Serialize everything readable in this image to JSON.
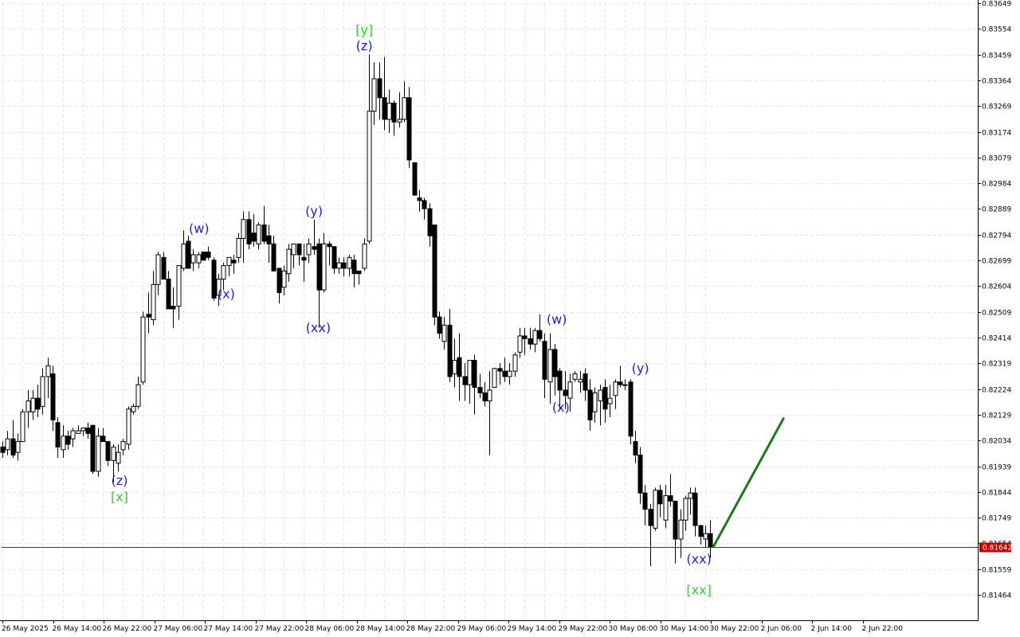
{
  "chart_data": {
    "type": "candlestick",
    "symbol_timeframe": "H2",
    "colors": {
      "background": "#ffffff",
      "grid": "#e6e6e6",
      "bull_body": "#ffffff",
      "bear_body": "#000000",
      "candle_outline": "#000000",
      "current_price_line": "#c80000",
      "forecast_line": "#1a7a1a",
      "wave_minor": "#2020d0",
      "wave_major": "#33cc33"
    },
    "y_axis": {
      "min": 0.8137,
      "max": 0.83649,
      "ticks": [
        "0.83649",
        "0.83554",
        "0.83459",
        "0.83364",
        "0.83269",
        "0.83174",
        "0.83079",
        "0.82984",
        "0.82889",
        "0.82794",
        "0.82699",
        "0.82604",
        "0.82509",
        "0.82414",
        "0.82319",
        "0.82224",
        "0.82129",
        "0.82034",
        "0.81939",
        "0.81844",
        "0.81749",
        "0.81654",
        "0.81559",
        "0.81464"
      ]
    },
    "x_axis": {
      "labels": [
        "26 May 2025",
        "26 May 14:00",
        "26 May 22:00",
        "27 May 06:00",
        "27 May 14:00",
        "27 May 22:00",
        "28 May 06:00",
        "28 May 14:00",
        "28 May 22:00",
        "29 May 06:00",
        "29 May 14:00",
        "29 May 22:00",
        "30 May 06:00",
        "30 May 14:00",
        "30 May 22:00",
        "2 Jun 06:00",
        "2 Jun 14:00",
        "2 Jun 22:00"
      ],
      "label_bar_index": [
        0,
        8,
        16,
        24,
        32,
        40,
        48,
        56,
        64,
        72,
        80,
        88,
        96,
        104,
        112,
        120,
        128,
        136
      ]
    },
    "current_price": "0.81642",
    "candles": [
      [
        0.8201,
        0.8203,
        0.8197,
        0.8199
      ],
      [
        0.82,
        0.8207,
        0.8198,
        0.8204
      ],
      [
        0.8204,
        0.8211,
        0.8197,
        0.8198
      ],
      [
        0.8199,
        0.8206,
        0.8196,
        0.8203
      ],
      [
        0.8203,
        0.8215,
        0.8203,
        0.8214
      ],
      [
        0.8214,
        0.8222,
        0.8208,
        0.8218
      ],
      [
        0.8214,
        0.8222,
        0.8211,
        0.8219
      ],
      [
        0.8219,
        0.8224,
        0.8212,
        0.8215
      ],
      [
        0.8216,
        0.823,
        0.8213,
        0.8227
      ],
      [
        0.8227,
        0.8234,
        0.8219,
        0.8231
      ],
      [
        0.8228,
        0.8231,
        0.8207,
        0.8211
      ],
      [
        0.821,
        0.8212,
        0.8197,
        0.8201
      ],
      [
        0.82,
        0.8209,
        0.8197,
        0.8205
      ],
      [
        0.8205,
        0.8207,
        0.82,
        0.8202
      ],
      [
        0.8204,
        0.8208,
        0.8201,
        0.8207
      ],
      [
        0.8206,
        0.8209,
        0.8206,
        0.8207
      ],
      [
        0.8207,
        0.8208,
        0.8205,
        0.8208
      ],
      [
        0.8208,
        0.821,
        0.8204,
        0.8206
      ],
      [
        0.8209,
        0.8209,
        0.8191,
        0.8192
      ],
      [
        0.8192,
        0.8208,
        0.819,
        0.8205
      ],
      [
        0.8205,
        0.8208,
        0.8203,
        0.8203
      ],
      [
        0.8203,
        0.8203,
        0.8194,
        0.8196
      ],
      [
        0.8196,
        0.8202,
        0.8188,
        0.8201
      ],
      [
        0.8195,
        0.8202,
        0.8192,
        0.8199
      ],
      [
        0.82,
        0.8204,
        0.8198,
        0.8203
      ],
      [
        0.8202,
        0.8216,
        0.82,
        0.8215
      ],
      [
        0.8214,
        0.8217,
        0.8213,
        0.8216
      ],
      [
        0.8216,
        0.8227,
        0.8215,
        0.8224
      ],
      [
        0.8225,
        0.8251,
        0.8224,
        0.8249
      ],
      [
        0.825,
        0.8258,
        0.8243,
        0.8249
      ],
      [
        0.8248,
        0.8266,
        0.8246,
        0.8261
      ],
      [
        0.8261,
        0.8273,
        0.8257,
        0.8272
      ],
      [
        0.8271,
        0.8273,
        0.8263,
        0.8263
      ],
      [
        0.8263,
        0.8266,
        0.8252,
        0.8252
      ],
      [
        0.8253,
        0.826,
        0.8245,
        0.8252
      ],
      [
        0.8253,
        0.8268,
        0.8248,
        0.8268
      ],
      [
        0.8267,
        0.8281,
        0.8266,
        0.8276
      ],
      [
        0.8277,
        0.8279,
        0.8267,
        0.8267
      ],
      [
        0.8269,
        0.8274,
        0.8266,
        0.8272
      ],
      [
        0.8269,
        0.8273,
        0.8267,
        0.8272
      ],
      [
        0.8273,
        0.8273,
        0.827,
        0.827
      ],
      [
        0.8273,
        0.8275,
        0.827,
        0.8271
      ],
      [
        0.827,
        0.8271,
        0.8255,
        0.8256
      ],
      [
        0.8257,
        0.8265,
        0.8253,
        0.8263
      ],
      [
        0.8263,
        0.8269,
        0.8259,
        0.8268
      ],
      [
        0.8268,
        0.8271,
        0.8264,
        0.8271
      ],
      [
        0.827,
        0.8272,
        0.8265,
        0.8269
      ],
      [
        0.8271,
        0.828,
        0.8269,
        0.8278
      ],
      [
        0.8278,
        0.8288,
        0.8269,
        0.8285
      ],
      [
        0.8285,
        0.8288,
        0.8274,
        0.8276
      ],
      [
        0.828,
        0.8287,
        0.8275,
        0.8277
      ],
      [
        0.8276,
        0.8284,
        0.8274,
        0.8283
      ],
      [
        0.8283,
        0.829,
        0.8276,
        0.8277
      ],
      [
        0.8279,
        0.8283,
        0.8269,
        0.8276
      ],
      [
        0.8276,
        0.8279,
        0.8267,
        0.8266
      ],
      [
        0.8267,
        0.8267,
        0.8254,
        0.8258
      ],
      [
        0.826,
        0.8268,
        0.8257,
        0.8266
      ],
      [
        0.8265,
        0.8276,
        0.8262,
        0.8274
      ],
      [
        0.8272,
        0.8275,
        0.8267,
        0.8276
      ],
      [
        0.8276,
        0.8276,
        0.8268,
        0.8272
      ],
      [
        0.8271,
        0.8276,
        0.8262,
        0.827
      ],
      [
        0.8272,
        0.8278,
        0.8269,
        0.8276
      ],
      [
        0.8275,
        0.8285,
        0.8272,
        0.8274
      ],
      [
        0.8276,
        0.8278,
        0.8245,
        0.8259
      ],
      [
        0.8259,
        0.828,
        0.8258,
        0.8276
      ],
      [
        0.8276,
        0.8277,
        0.8268,
        0.8275
      ],
      [
        0.8275,
        0.8275,
        0.8265,
        0.8267
      ],
      [
        0.8267,
        0.8271,
        0.8265,
        0.8269
      ],
      [
        0.8269,
        0.8271,
        0.8264,
        0.8267
      ],
      [
        0.8267,
        0.8272,
        0.8264,
        0.8271
      ],
      [
        0.827,
        0.8272,
        0.826,
        0.8265
      ],
      [
        0.8266,
        0.8266,
        0.8261,
        0.8265
      ],
      [
        0.8267,
        0.8278,
        0.8266,
        0.8276
      ],
      [
        0.8277,
        0.8346,
        0.8276,
        0.8325
      ],
      [
        0.8325,
        0.8343,
        0.832,
        0.8337
      ],
      [
        0.8337,
        0.8343,
        0.8322,
        0.833
      ],
      [
        0.833,
        0.8345,
        0.8318,
        0.8322
      ],
      [
        0.8322,
        0.8333,
        0.8317,
        0.8328
      ],
      [
        0.8328,
        0.8329,
        0.8316,
        0.8321
      ],
      [
        0.8321,
        0.8332,
        0.8319,
        0.8322
      ],
      [
        0.8322,
        0.8336,
        0.8321,
        0.833
      ],
      [
        0.833,
        0.8334,
        0.8304,
        0.8307
      ],
      [
        0.8306,
        0.8306,
        0.8294,
        0.8294
      ],
      [
        0.8293,
        0.8296,
        0.8288,
        0.8292
      ],
      [
        0.8292,
        0.8293,
        0.8285,
        0.8289
      ],
      [
        0.8289,
        0.8291,
        0.8275,
        0.8279
      ],
      [
        0.8283,
        0.8283,
        0.8246,
        0.8249
      ],
      [
        0.8249,
        0.8251,
        0.8241,
        0.8243
      ],
      [
        0.824,
        0.8249,
        0.8237,
        0.8246
      ],
      [
        0.8246,
        0.8252,
        0.8225,
        0.8227
      ],
      [
        0.8228,
        0.8241,
        0.8223,
        0.8233
      ],
      [
        0.8234,
        0.8243,
        0.8218,
        0.8227
      ],
      [
        0.8227,
        0.8232,
        0.8218,
        0.8224
      ],
      [
        0.8224,
        0.8233,
        0.8217,
        0.8233
      ],
      [
        0.8233,
        0.8235,
        0.8213,
        0.8223
      ],
      [
        0.8223,
        0.8228,
        0.8219,
        0.8221
      ],
      [
        0.8221,
        0.8225,
        0.8216,
        0.8218
      ],
      [
        0.8218,
        0.8229,
        0.8198,
        0.8222
      ],
      [
        0.8223,
        0.823,
        0.8223,
        0.823
      ],
      [
        0.823,
        0.8232,
        0.8224,
        0.8229
      ],
      [
        0.8229,
        0.8234,
        0.8225,
        0.8227
      ],
      [
        0.8227,
        0.8232,
        0.8224,
        0.8229
      ],
      [
        0.8229,
        0.8236,
        0.8227,
        0.8235
      ],
      [
        0.8236,
        0.8245,
        0.8234,
        0.8242
      ],
      [
        0.8242,
        0.8245,
        0.8235,
        0.8241
      ],
      [
        0.8241,
        0.8245,
        0.8237,
        0.8239
      ],
      [
        0.8239,
        0.8245,
        0.8236,
        0.8244
      ],
      [
        0.8244,
        0.825,
        0.824,
        0.8241
      ],
      [
        0.824,
        0.8243,
        0.8219,
        0.8226
      ],
      [
        0.8225,
        0.8243,
        0.8217,
        0.8237
      ],
      [
        0.8237,
        0.8239,
        0.822,
        0.8227
      ],
      [
        0.8229,
        0.823,
        0.8215,
        0.8222
      ],
      [
        0.8222,
        0.8229,
        0.8215,
        0.822
      ],
      [
        0.8219,
        0.8228,
        0.8214,
        0.8225
      ],
      [
        0.8226,
        0.8229,
        0.8225,
        0.8228
      ],
      [
        0.8225,
        0.8229,
        0.8221,
        0.8226
      ],
      [
        0.8228,
        0.823,
        0.8218,
        0.8222
      ],
      [
        0.8222,
        0.8226,
        0.8207,
        0.8211
      ],
      [
        0.8214,
        0.8223,
        0.821,
        0.8221
      ],
      [
        0.8218,
        0.8224,
        0.8209,
        0.8222
      ],
      [
        0.8223,
        0.8226,
        0.821,
        0.8215
      ],
      [
        0.8217,
        0.8224,
        0.8212,
        0.8219
      ],
      [
        0.822,
        0.8226,
        0.8215,
        0.8225
      ],
      [
        0.8225,
        0.8231,
        0.8223,
        0.8224
      ],
      [
        0.8224,
        0.8226,
        0.8222,
        0.8224
      ],
      [
        0.8225,
        0.8226,
        0.8202,
        0.8205
      ],
      [
        0.8203,
        0.8207,
        0.8195,
        0.8198
      ],
      [
        0.8198,
        0.8201,
        0.818,
        0.8184
      ],
      [
        0.8184,
        0.8187,
        0.8172,
        0.8178
      ],
      [
        0.8178,
        0.818,
        0.8157,
        0.8172
      ],
      [
        0.8171,
        0.8186,
        0.817,
        0.8185
      ],
      [
        0.8185,
        0.8187,
        0.8175,
        0.818
      ],
      [
        0.8174,
        0.8187,
        0.8171,
        0.8183
      ],
      [
        0.8183,
        0.8191,
        0.8179,
        0.8181
      ],
      [
        0.8181,
        0.8181,
        0.8158,
        0.8167
      ],
      [
        0.8167,
        0.8178,
        0.816,
        0.8174
      ],
      [
        0.8174,
        0.8183,
        0.817,
        0.8182
      ],
      [
        0.8182,
        0.8186,
        0.8176,
        0.8184
      ],
      [
        0.8184,
        0.8186,
        0.8168,
        0.8172
      ],
      [
        0.8172,
        0.8172,
        0.8165,
        0.8168
      ],
      [
        0.8167,
        0.8172,
        0.8164,
        0.8169
      ],
      [
        0.8169,
        0.8174,
        0.816,
        0.8164
      ]
    ],
    "bar_step": 6.3,
    "forecast": {
      "from_bar": 141,
      "from_price": 0.81642,
      "to_bar": 150.5,
      "to_price": 0.82115
    },
    "wave_labels": [
      {
        "text": "(z)",
        "bar": 28,
        "price": 0.8187,
        "level": "minor"
      },
      {
        "text": "[x]",
        "bar": 28,
        "price": 0.8181,
        "level": "major"
      },
      {
        "text": "(w)",
        "bar": 47,
        "price": 0.828,
        "level": "minor"
      },
      {
        "text": "(x)",
        "bar": 53.5,
        "price": 0.8256,
        "level": "minor"
      },
      {
        "text": "(y)",
        "bar": 74.5,
        "price": 0.82865,
        "level": "minor"
      },
      {
        "text": "(xx)",
        "bar": 75.5,
        "price": 0.82435,
        "level": "minor"
      },
      {
        "text": "[y]",
        "bar": 86.5,
        "price": 0.83535,
        "level": "major"
      },
      {
        "text": "(z)",
        "bar": 86.5,
        "price": 0.83475,
        "level": "minor"
      },
      {
        "text": "(w)",
        "bar": 132.5,
        "price": 0.82465,
        "level": "minor"
      },
      {
        "text": "(x)",
        "bar": 133.5,
        "price": 0.8214,
        "level": "minor"
      },
      {
        "text": "(y)",
        "bar": 152.5,
        "price": 0.82285,
        "level": "minor"
      },
      {
        "text": "(xx)",
        "bar": 166.5,
        "price": 0.8158,
        "level": "minor"
      },
      {
        "text": "[xx]",
        "bar": 166.5,
        "price": 0.81465,
        "level": "major"
      }
    ]
  }
}
